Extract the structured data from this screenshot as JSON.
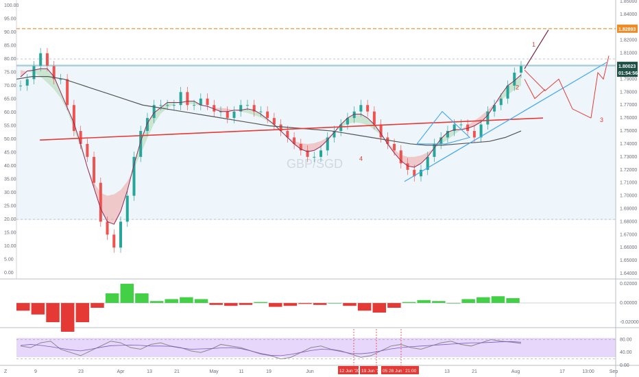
{
  "chart_data": {
    "type": "line",
    "watermark": "GBP/SGD",
    "left_axis": {
      "ticks": [
        "100.00",
        "95.00",
        "90.00",
        "85.00",
        "80.00",
        "75.00",
        "70.00",
        "65.00",
        "60.00",
        "55.00",
        "50.00",
        "45.00",
        "40.00",
        "35.00",
        "30.00",
        "25.00",
        "20.00",
        "15.00",
        "10.00",
        "5.00",
        "0.00"
      ],
      "range": [
        0,
        100
      ]
    },
    "right_axis": {
      "ticks": [
        "1.85000",
        "1.84000",
        "1.83000",
        "1.82000",
        "1.81000",
        "1.80000",
        "1.79000",
        "1.78000",
        "1.77000",
        "1.76000",
        "1.75000",
        "1.74000",
        "1.73000",
        "1.72000",
        "1.71000",
        "1.70000",
        "1.69000",
        "1.68000",
        "1.67000",
        "1.66000",
        "1.65000",
        "1.64000"
      ],
      "range": [
        1.64,
        1.85
      ]
    },
    "x_axis": {
      "ticks": [
        "9",
        "23",
        "Apr",
        "13",
        "21",
        "May",
        "11",
        "19",
        "Jun",
        "13",
        "21",
        "Aug",
        "17",
        "13:00",
        "Sep"
      ]
    },
    "price_labels": {
      "resistance": "1.82893",
      "current": "1.80023",
      "countdown": "01:54:56"
    },
    "date_tags": [
      "12 Jun '20",
      "19 Jun '20",
      "05 28 Jun '20",
      "21:00"
    ],
    "annotations": [
      "1",
      "2",
      "3",
      "4"
    ],
    "price_series": [
      1.785,
      1.79,
      1.8,
      1.81,
      1.8,
      1.79,
      1.79,
      1.77,
      1.75,
      1.74,
      1.73,
      1.71,
      1.68,
      1.67,
      1.66,
      1.68,
      1.7,
      1.73,
      1.75,
      1.76,
      1.77,
      1.77,
      1.77,
      1.77,
      1.78,
      1.77,
      1.77,
      1.775,
      1.77,
      1.765,
      1.765,
      1.76,
      1.765,
      1.77,
      1.77,
      1.765,
      1.765,
      1.76,
      1.755,
      1.75,
      1.745,
      1.74,
      1.735,
      1.73,
      1.73,
      1.735,
      1.745,
      1.75,
      1.755,
      1.76,
      1.765,
      1.77,
      1.765,
      1.755,
      1.745,
      1.74,
      1.735,
      1.725,
      1.72,
      1.715,
      1.72,
      1.73,
      1.74,
      1.745,
      1.75,
      1.755,
      1.755,
      1.75,
      1.745,
      1.755,
      1.765,
      1.77,
      1.775,
      1.785,
      1.795,
      1.8
    ],
    "ma_long": [
      1.79,
      1.792,
      1.792,
      1.79,
      1.786,
      1.782,
      1.778,
      1.774,
      1.77,
      1.768,
      1.766,
      1.764,
      1.762,
      1.76,
      1.758,
      1.756,
      1.754,
      1.753,
      1.752,
      1.751,
      1.75,
      1.748,
      1.746,
      1.744,
      1.742,
      1.74,
      1.739,
      1.739,
      1.74,
      1.741,
      1.742,
      1.745,
      1.75
    ],
    "ma_red": [
      1.743,
      1.76
    ],
    "resistance_level": 1.82893,
    "oscillator": {
      "ticks": [
        "0.02000",
        "0.00000",
        "-0.02000"
      ],
      "values": [
        -0.008,
        -0.012,
        -0.02,
        -0.03,
        -0.02,
        -0.005,
        0.01,
        0.02,
        0.01,
        0.002,
        0.004,
        0.006,
        0.004,
        -0.002,
        -0.003,
        -0.002,
        0.001,
        -0.004,
        -0.003,
        -0.001,
        -0.002,
        0.0,
        -0.003,
        -0.008,
        -0.01,
        -0.005,
        0.001,
        0.003,
        0.002,
        0.0,
        0.004,
        0.006,
        0.007,
        0.005
      ]
    },
    "rsi": {
      "ticks": [
        "80.00",
        "40.00",
        "0.00"
      ],
      "band": [
        20,
        80
      ],
      "values": [
        60,
        55,
        70,
        75,
        50,
        40,
        30,
        45,
        60,
        75,
        70,
        55,
        50,
        65,
        70,
        60,
        55,
        45,
        40,
        50,
        65,
        60,
        55,
        45,
        35,
        30,
        20,
        25,
        40,
        55,
        60,
        50,
        45,
        35,
        25,
        30,
        45,
        60,
        65,
        55,
        50,
        60,
        70,
        75,
        65,
        60,
        70,
        80,
        75,
        72,
        68
      ]
    }
  }
}
